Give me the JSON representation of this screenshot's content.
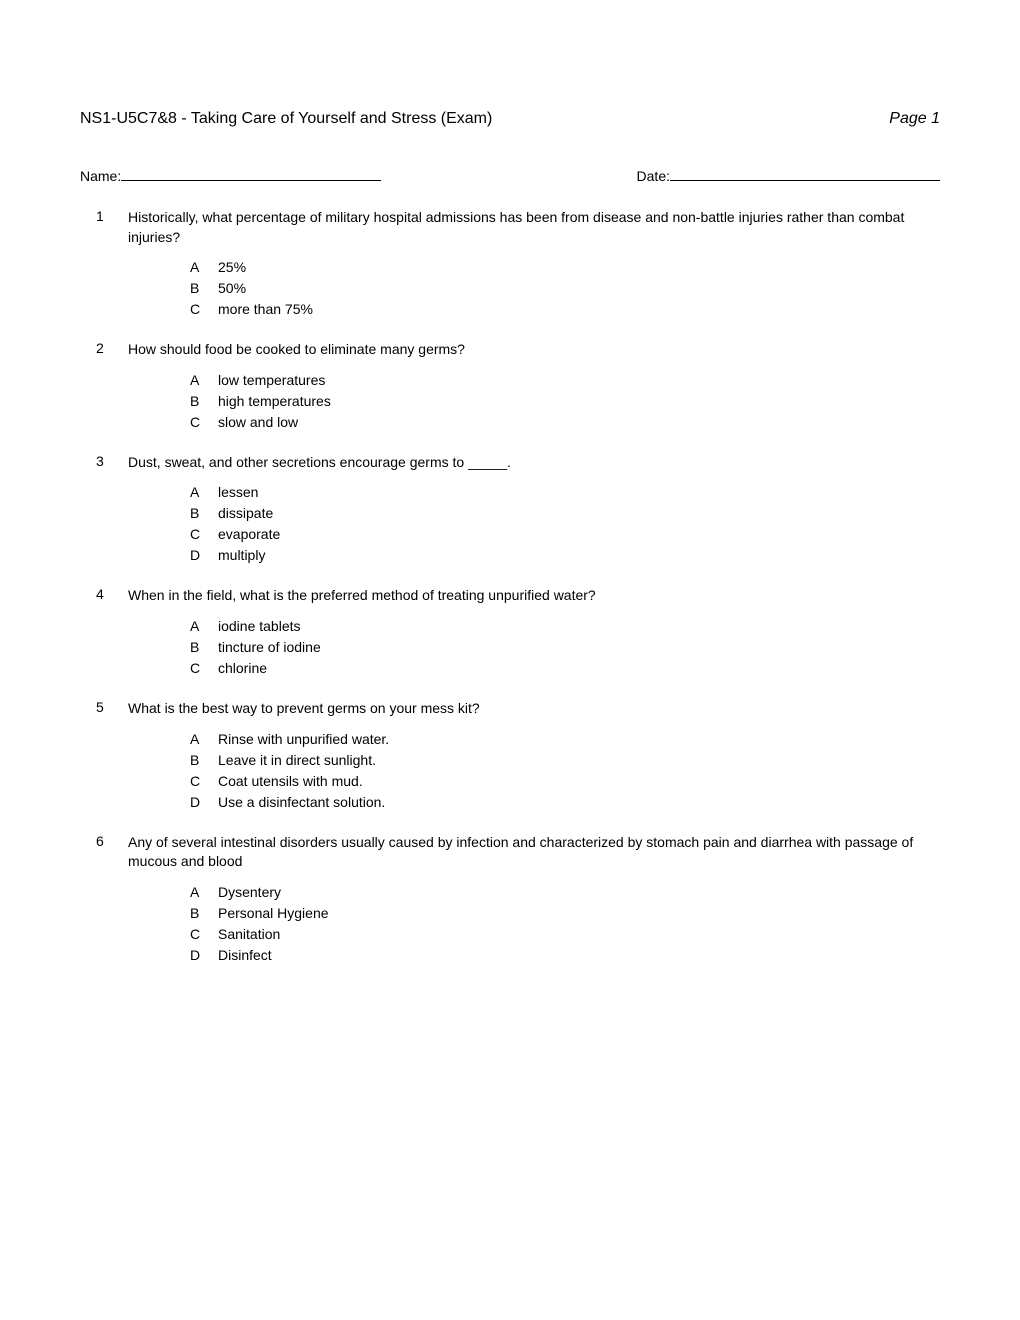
{
  "header": {
    "title": "NS1-U5C7&8 - Taking Care of Yourself and Stress (Exam)",
    "page": "Page 1"
  },
  "fields": {
    "name_label": "Name:",
    "date_label": "Date:"
  },
  "questions": [
    {
      "number": "1",
      "text": "Historically, what percentage of military hospital admissions has been from disease and non-battle injuries rather than combat injuries?",
      "options": [
        {
          "letter": "A",
          "text": "25%"
        },
        {
          "letter": "B",
          "text": "50%"
        },
        {
          "letter": "C",
          "text": "more than 75%"
        }
      ]
    },
    {
      "number": "2",
      "text": "How should food be cooked to eliminate many germs?",
      "options": [
        {
          "letter": "A",
          "text": "low temperatures"
        },
        {
          "letter": "B",
          "text": "high temperatures"
        },
        {
          "letter": "C",
          "text": "slow and low"
        }
      ]
    },
    {
      "number": "3",
      "text": "Dust, sweat, and other secretions encourage germs to _____.",
      "options": [
        {
          "letter": "A",
          "text": "lessen"
        },
        {
          "letter": "B",
          "text": "dissipate"
        },
        {
          "letter": "C",
          "text": "evaporate"
        },
        {
          "letter": "D",
          "text": "multiply"
        }
      ]
    },
    {
      "number": "4",
      "text": "When in the field, what is the preferred method of treating unpurified water?",
      "options": [
        {
          "letter": "A",
          "text": "iodine tablets"
        },
        {
          "letter": "B",
          "text": "tincture of iodine"
        },
        {
          "letter": "C",
          "text": "chlorine"
        }
      ]
    },
    {
      "number": "5",
      "text": "What is the best way to prevent germs on your mess kit?",
      "options": [
        {
          "letter": "A",
          "text": "Rinse with unpurified water."
        },
        {
          "letter": "B",
          "text": "Leave it in direct sunlight."
        },
        {
          "letter": "C",
          "text": "Coat utensils with mud."
        },
        {
          "letter": "D",
          "text": "Use a disinfectant solution."
        }
      ]
    },
    {
      "number": "6",
      "text": "Any of several intestinal disorders usually caused by infection and characterized by stomach pain and diarrhea with passage of mucous and blood",
      "options": [
        {
          "letter": "A",
          "text": "Dysentery"
        },
        {
          "letter": "B",
          "text": "Personal Hygiene"
        },
        {
          "letter": "C",
          "text": "Sanitation"
        },
        {
          "letter": "D",
          "text": "Disinfect"
        }
      ]
    }
  ]
}
